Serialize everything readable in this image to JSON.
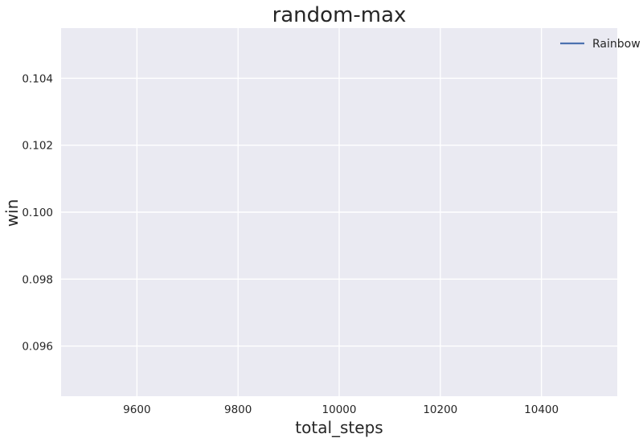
{
  "chart_data": {
    "type": "line",
    "title": "random-max",
    "xlabel": "total_steps",
    "ylabel": "win",
    "xlim": [
      9450,
      10550
    ],
    "ylim": [
      0.0945,
      0.1055
    ],
    "xticks": [
      9600,
      9800,
      10000,
      10200,
      10400
    ],
    "yticks": [
      0.096,
      0.098,
      0.1,
      0.102,
      0.104
    ],
    "xtick_labels": [
      "9600",
      "9800",
      "10000",
      "10200",
      "10400"
    ],
    "ytick_labels": [
      "0.096",
      "0.098",
      "0.100",
      "0.102",
      "0.104"
    ],
    "grid": true,
    "legend_position": "top-right",
    "series": [
      {
        "name": "Rainbow",
        "color": "#4c72b0",
        "x": [],
        "y": []
      }
    ],
    "colors": {
      "plot_background": "#eaeaf2",
      "grid": "#ffffff"
    }
  }
}
